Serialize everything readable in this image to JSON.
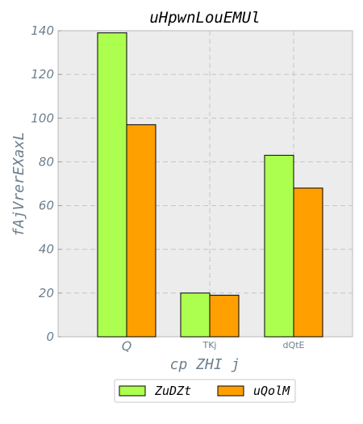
{
  "chart_data": {
    "type": "bar",
    "title": "uHpwnLouEMUl",
    "xlabel": "cp ZHI j",
    "ylabel": "fAjVrerEXaxL",
    "categories": [
      "Q",
      "TKj",
      "dQtE"
    ],
    "series": [
      {
        "name": "ZuDZt",
        "values": [
          139,
          20,
          83
        ],
        "color": "#adff4f"
      },
      {
        "name": "uQolM",
        "values": [
          97,
          19,
          68
        ],
        "color": "#ff9f00"
      }
    ],
    "ylim": [
      0,
      140
    ],
    "yticks": [
      0,
      20,
      40,
      60,
      80,
      100,
      120,
      140
    ],
    "grid": true,
    "legend_position": "bottom-center",
    "background_color": "#ececec"
  }
}
